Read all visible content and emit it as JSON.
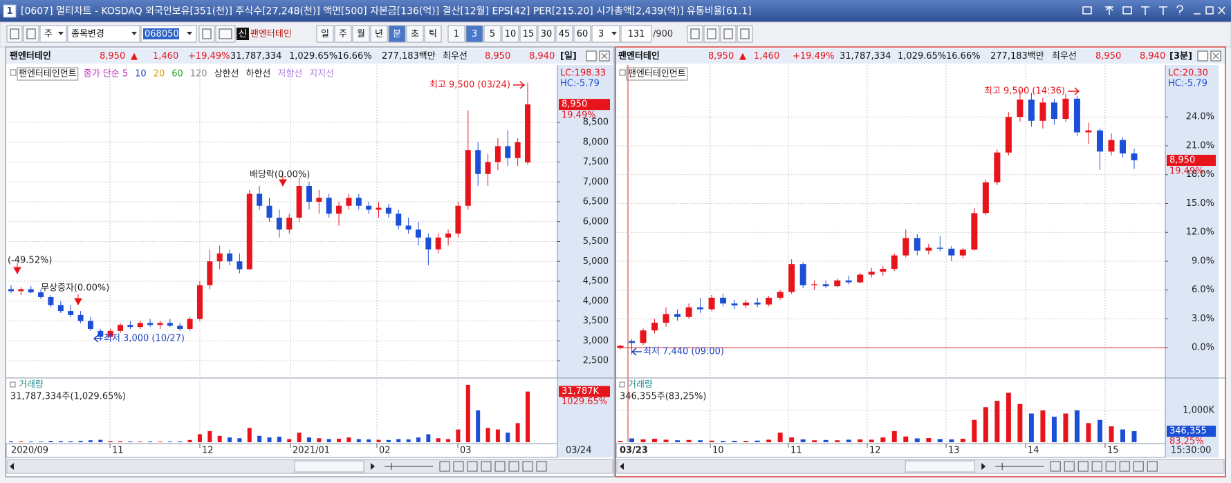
{
  "title_bar": {
    "badge": "1",
    "title": "[0607] 멀티차트 - KOSDAQ 외국인보유[351(천)] 주식수[27,248(천)] 액면[500] 자본금[136(억)] 결산[12월] EPS[42] PER[215.20] 시가총액[2,439(억)] 유통비율[61.1]"
  },
  "toolbar": {
    "market": "주",
    "change": "종목변경",
    "code": "068050",
    "new_badge": "신",
    "name": "팬엔터테인",
    "periods": [
      {
        "text": "일"
      },
      {
        "text": "주"
      },
      {
        "text": "월"
      },
      {
        "text": "년"
      },
      {
        "text": "분",
        "selected": true
      },
      {
        "text": "초"
      },
      {
        "text": "틱"
      }
    ],
    "intervals": [
      {
        "text": "1"
      },
      {
        "text": "3",
        "selected": true
      },
      {
        "text": "5"
      },
      {
        "text": "10"
      },
      {
        "text": "15"
      },
      {
        "text": "30"
      },
      {
        "text": "45"
      },
      {
        "text": "60"
      }
    ],
    "unit": "3",
    "count": "131",
    "max": "/900"
  },
  "left_panel": {
    "info": {
      "name": "팬엔터테인",
      "price": "8,950",
      "arrow": "▲",
      "change": "1,460",
      "rate": "+19.49%",
      "volume": "31,787,334",
      "volume_ratio": "1,029.65%",
      "turnover": "16.66%",
      "market_cap": "277,183백만",
      "best": "최우선",
      "ask": "8,950",
      "bid": "8,940",
      "period": "[일]"
    },
    "legend": [
      {
        "text": "팬엔터테인먼트",
        "color": "#222222"
      },
      {
        "text": "종가 단순 5",
        "color": "#c030c0"
      },
      {
        "text": "10",
        "color": "#2040c0"
      },
      {
        "text": "20",
        "color": "#e0a000"
      },
      {
        "text": "60",
        "color": "#20a020"
      },
      {
        "text": "120",
        "color": "#888888"
      },
      {
        "text": "상한선",
        "color": "#222222"
      },
      {
        "text": "하한선",
        "color": "#222222"
      },
      {
        "text": "저항선",
        "color": "#b080e0"
      },
      {
        "text": "지지선",
        "color": "#b080e0"
      }
    ],
    "price_chart": {
      "type": "candlestick",
      "up_color": "#e8141c",
      "down_color": "#1b4fd6",
      "ylim": [
        2100,
        9700
      ],
      "yticks": [
        {
          "value": 2500,
          "label": "2,500"
        },
        {
          "value": 3000,
          "label": "3,000"
        },
        {
          "value": 3500,
          "label": "3,500"
        },
        {
          "value": 4000,
          "label": "4,000"
        },
        {
          "value": 4500,
          "label": "4,500"
        },
        {
          "value": 5000,
          "label": "5,000"
        },
        {
          "value": 5500,
          "label": "5,500"
        },
        {
          "value": 6000,
          "label": "6,000"
        },
        {
          "value": 6500,
          "label": "6,500"
        },
        {
          "value": 7000,
          "label": "7,000"
        },
        {
          "value": 7500,
          "label": "7,500"
        },
        {
          "value": 8000,
          "label": "8,000"
        },
        {
          "value": 8500,
          "label": "8,500"
        }
      ],
      "lc": "LC:198.33",
      "hc": "HC:-5.79",
      "last_tag": {
        "value": 8950,
        "label": "8,950"
      },
      "last_rate": "19.49%",
      "annotations": [
        "최고 9,500 (03/24)",
        "배당락(0.00%)",
        "(-49.52%)",
        "무상증자(0.00%)",
        "최저 3,000 (10/27)"
      ],
      "candles": [
        [
          4300,
          4400,
          4200,
          4250
        ],
        [
          4250,
          4350,
          4150,
          4300
        ],
        [
          4300,
          4380,
          4200,
          4220
        ],
        [
          4220,
          4300,
          4050,
          4100
        ],
        [
          4100,
          4150,
          3850,
          3900
        ],
        [
          3900,
          4000,
          3700,
          3750
        ],
        [
          3750,
          3900,
          3600,
          3650
        ],
        [
          3650,
          3750,
          3450,
          3500
        ],
        [
          3500,
          3600,
          3250,
          3300
        ],
        [
          3250,
          3300,
          3000,
          3100
        ],
        [
          3100,
          3300,
          3050,
          3250
        ],
        [
          3250,
          3450,
          3200,
          3400
        ],
        [
          3400,
          3500,
          3300,
          3350
        ],
        [
          3350,
          3500,
          3300,
          3450
        ],
        [
          3450,
          3550,
          3350,
          3400
        ],
        [
          3400,
          3500,
          3300,
          3450
        ],
        [
          3450,
          3550,
          3350,
          3380
        ],
        [
          3380,
          3450,
          3250,
          3300
        ],
        [
          3300,
          3600,
          3250,
          3550
        ],
        [
          3550,
          4500,
          3500,
          4400
        ],
        [
          4400,
          5300,
          4300,
          5000
        ],
        [
          5000,
          5400,
          4800,
          5200
        ],
        [
          5200,
          5300,
          4900,
          5000
        ],
        [
          5000,
          5200,
          4700,
          4800
        ],
        [
          4800,
          6800,
          4800,
          6700
        ],
        [
          6700,
          6900,
          6300,
          6400
        ],
        [
          6400,
          6600,
          6000,
          6100
        ],
        [
          6100,
          6300,
          5600,
          5800
        ],
        [
          5800,
          6200,
          5700,
          6100
        ],
        [
          6100,
          7100,
          6000,
          6900
        ],
        [
          6900,
          7000,
          6300,
          6500
        ],
        [
          6500,
          6800,
          6200,
          6600
        ],
        [
          6600,
          6700,
          6100,
          6200
        ],
        [
          6200,
          6500,
          5900,
          6400
        ],
        [
          6400,
          6700,
          6300,
          6600
        ],
        [
          6600,
          6700,
          6300,
          6400
        ],
        [
          6400,
          6500,
          6200,
          6300
        ],
        [
          6300,
          6500,
          6100,
          6350
        ],
        [
          6350,
          6450,
          6100,
          6200
        ],
        [
          6200,
          6300,
          5800,
          5900
        ],
        [
          5900,
          6100,
          5700,
          5800
        ],
        [
          5800,
          6000,
          5400,
          5600
        ],
        [
          5600,
          5700,
          4900,
          5300
        ],
        [
          5300,
          5700,
          5200,
          5600
        ],
        [
          5600,
          5800,
          5400,
          5700
        ],
        [
          5700,
          6500,
          5600,
          6400
        ],
        [
          6400,
          8800,
          6300,
          7800
        ],
        [
          7800,
          8000,
          6900,
          7200
        ],
        [
          7200,
          7700,
          6900,
          7500
        ],
        [
          7500,
          8100,
          7300,
          7900
        ],
        [
          7900,
          8300,
          7400,
          7600
        ],
        [
          7600,
          8100,
          7400,
          8000
        ],
        [
          7490,
          9500,
          7440,
          8950
        ]
      ]
    },
    "volume_chart": {
      "type": "bar",
      "title": "거래량",
      "summary": "31,787,334주(1,029.65%)",
      "ylim": [
        0,
        39000000
      ],
      "yticks": [],
      "last_tag": {
        "value": 31787334,
        "label": "31,787K"
      },
      "last_rate": "1029.65%",
      "tag_color": "#e8141c",
      "values": [
        600000,
        500000,
        450000,
        400000,
        800000,
        700000,
        600000,
        900000,
        1200000,
        1500000,
        700000,
        600000,
        500000,
        400000,
        500000,
        400000,
        450000,
        500000,
        1400000,
        5000000,
        7000000,
        4000000,
        3000000,
        2500000,
        9000000,
        4000000,
        3000000,
        3500000,
        2000000,
        6000000,
        3000000,
        2500000,
        2000000,
        2200000,
        3000000,
        2000000,
        1800000,
        1500000,
        1400000,
        2000000,
        1800000,
        3000000,
        5000000,
        2500000,
        2000000,
        8000000,
        36000000,
        20000000,
        9000000,
        8000000,
        6000000,
        12000000,
        31787334
      ]
    },
    "x_labels": [
      "2020/09",
      "11",
      "12",
      "2021/01",
      "02",
      "03",
      "03/24"
    ]
  },
  "right_panel": {
    "info": {
      "name": "팬엔터테인",
      "price": "8,950",
      "arrow": "▲",
      "change": "1,460",
      "rate": "+19.49%",
      "volume": "31,787,334",
      "volume_ratio": "1,029.65%",
      "turnover": "16.66%",
      "market_cap": "277,183백만",
      "best": "최우선",
      "ask": "8,950",
      "bid": "8,940",
      "period": "[3분]"
    },
    "legend": [
      {
        "text": "팬엔터테인먼트",
        "color": "#222222"
      }
    ],
    "price_chart": {
      "type": "candlestick",
      "up_color": "#e8141c",
      "down_color": "#1b4fd6",
      "reference_color": "#e02020",
      "ylim": [
        -3,
        28.4
      ],
      "yticks": [
        {
          "value": 0,
          "label": "0.0%"
        },
        {
          "value": 3,
          "label": "3.0%"
        },
        {
          "value": 6,
          "label": "6.0%"
        },
        {
          "value": 9,
          "label": "9.0%"
        },
        {
          "value": 12,
          "label": "12.0%"
        },
        {
          "value": 15,
          "label": "15.0%"
        },
        {
          "value": 18,
          "label": "18.0%"
        },
        {
          "value": 21,
          "label": "21.0%"
        },
        {
          "value": 24,
          "label": "24.0%"
        }
      ],
      "lc": "LC:20.30",
      "hc": "HC:-5.79",
      "last_tag": {
        "value": 19.49,
        "label": "8,950"
      },
      "last_rate": "19.49%",
      "annotations": [
        "최고 9,500 (14:36)",
        "최저 7,440 (09:00)"
      ],
      "candles": [
        [
          0,
          0.3,
          -0.2,
          0.2
        ],
        [
          0.7,
          0.9,
          -0.7,
          0.5
        ],
        [
          0.5,
          2.0,
          0.3,
          1.8
        ],
        [
          1.8,
          3.0,
          1.5,
          2.6
        ],
        [
          2.6,
          4.2,
          2.2,
          3.5
        ],
        [
          3.5,
          4.0,
          2.8,
          3.2
        ],
        [
          3.2,
          4.6,
          3.0,
          4.2
        ],
        [
          4.2,
          5.2,
          3.6,
          4.0
        ],
        [
          4.0,
          5.5,
          3.8,
          5.2
        ],
        [
          5.2,
          5.6,
          4.3,
          4.6
        ],
        [
          4.6,
          5.0,
          4.0,
          4.4
        ],
        [
          4.4,
          5.0,
          4.1,
          4.7
        ],
        [
          4.7,
          5.2,
          4.2,
          4.5
        ],
        [
          4.5,
          5.4,
          4.3,
          5.2
        ],
        [
          5.2,
          6.0,
          5.0,
          5.8
        ],
        [
          5.8,
          9.2,
          5.6,
          8.7
        ],
        [
          8.7,
          8.9,
          6.2,
          6.5
        ],
        [
          6.5,
          7.0,
          6.0,
          6.6
        ],
        [
          6.6,
          7.0,
          6.2,
          6.4
        ],
        [
          6.4,
          7.2,
          6.3,
          7.0
        ],
        [
          7.0,
          7.5,
          6.6,
          6.8
        ],
        [
          6.8,
          7.8,
          6.7,
          7.6
        ],
        [
          7.6,
          8.3,
          7.3,
          7.9
        ],
        [
          7.9,
          8.5,
          7.5,
          8.2
        ],
        [
          8.2,
          9.8,
          8.0,
          9.6
        ],
        [
          9.6,
          12.3,
          9.4,
          11.4
        ],
        [
          11.4,
          11.8,
          9.6,
          10.1
        ],
        [
          10.1,
          10.8,
          9.7,
          10.4
        ],
        [
          10.4,
          11.6,
          10.0,
          10.3
        ],
        [
          10.3,
          10.6,
          9.0,
          9.6
        ],
        [
          9.6,
          10.4,
          9.3,
          10.2
        ],
        [
          10.2,
          14.5,
          10.1,
          14.0
        ],
        [
          14.0,
          17.5,
          13.8,
          17.2
        ],
        [
          17.2,
          20.6,
          16.9,
          20.3
        ],
        [
          20.3,
          24.5,
          20.0,
          24.0
        ],
        [
          24.0,
          26.8,
          23.5,
          25.8
        ],
        [
          25.8,
          26.5,
          23.0,
          23.6
        ],
        [
          23.6,
          26.0,
          22.8,
          25.5
        ],
        [
          25.5,
          25.9,
          23.2,
          23.8
        ],
        [
          23.8,
          26.4,
          23.5,
          25.9
        ],
        [
          25.9,
          26.2,
          22.0,
          22.4
        ],
        [
          22.4,
          23.4,
          21.2,
          22.6
        ],
        [
          22.6,
          22.8,
          18.5,
          20.4
        ],
        [
          20.4,
          22.3,
          20.0,
          21.6
        ],
        [
          21.6,
          21.9,
          19.8,
          20.2
        ],
        [
          20.2,
          20.7,
          18.6,
          19.5
        ]
      ]
    },
    "volume_chart": {
      "type": "bar",
      "title": "거래량",
      "summary": "346,355주(83,25%)",
      "ylim": [
        0,
        1950000
      ],
      "yticks": [
        {
          "value": 1000000,
          "label": "1,000K"
        }
      ],
      "last_tag": {
        "value": 346355,
        "label": "346,355"
      },
      "last_rate": "83,25%",
      "tag_color": "#1b4fd6",
      "values": [
        40000,
        120000,
        90000,
        110000,
        80000,
        60000,
        70000,
        60000,
        50000,
        40000,
        45000,
        40000,
        50000,
        80000,
        300000,
        150000,
        90000,
        60000,
        70000,
        60000,
        80000,
        90000,
        80000,
        150000,
        350000,
        180000,
        120000,
        130000,
        100000,
        90000,
        110000,
        700000,
        1100000,
        1300000,
        1550000,
        1200000,
        900000,
        1000000,
        800000,
        900000,
        1000000,
        600000,
        700000,
        500000,
        400000,
        346355
      ]
    },
    "x_labels": [
      "03/23",
      "10",
      "11",
      "12",
      "13",
      "14",
      "15",
      "15:30:00"
    ]
  }
}
